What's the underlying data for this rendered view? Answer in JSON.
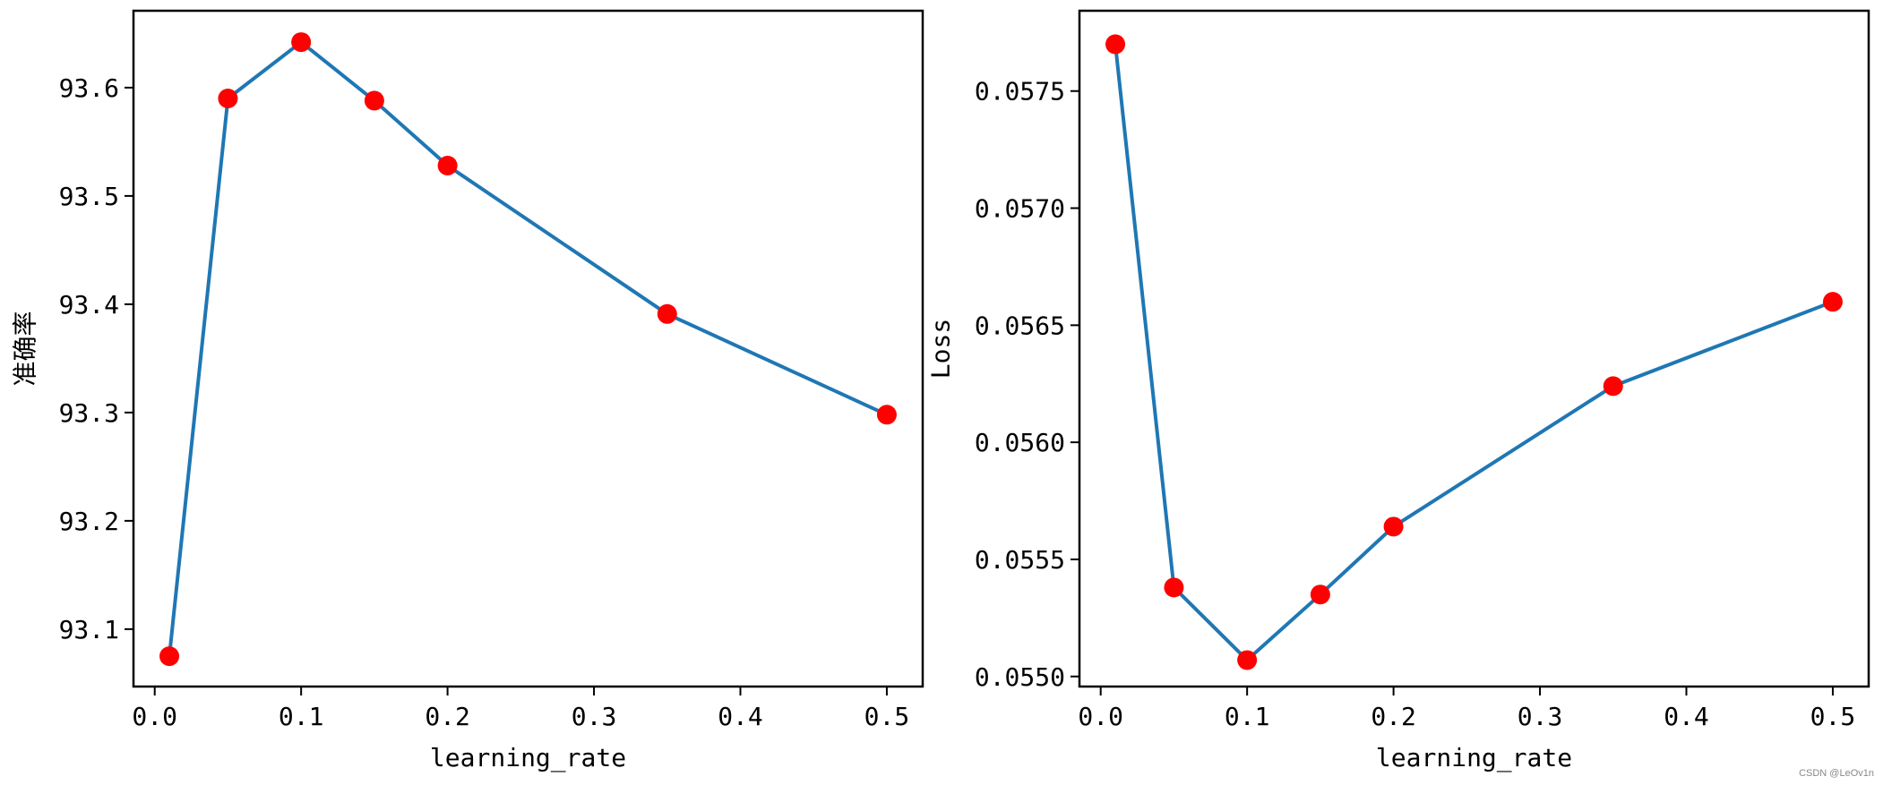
{
  "colors": {
    "line": "#1f77b4",
    "marker": "#ff0000",
    "axis": "#000000"
  },
  "watermark": "CSDN @LeOv1n",
  "chart_data": [
    {
      "type": "line",
      "xlabel": "learning_rate",
      "ylabel": "准确率",
      "x": [
        0.01,
        0.05,
        0.1,
        0.15,
        0.2,
        0.35,
        0.5
      ],
      "series": [
        {
          "values": [
            93.075,
            93.59,
            93.642,
            93.588,
            93.528,
            93.391,
            93.298
          ]
        }
      ],
      "xlim": [
        -0.0145,
        0.5245
      ],
      "ylim": [
        93.047,
        93.671
      ],
      "xticks": [
        0.0,
        0.1,
        0.2,
        0.3,
        0.4,
        0.5
      ],
      "xtick_labels": [
        "0.0",
        "0.1",
        "0.2",
        "0.3",
        "0.4",
        "0.5"
      ],
      "yticks": [
        93.1,
        93.2,
        93.3,
        93.4,
        93.5,
        93.6
      ],
      "ytick_labels": [
        "93.1",
        "93.2",
        "93.3",
        "93.4",
        "93.5",
        "93.6"
      ],
      "grid": false
    },
    {
      "type": "line",
      "xlabel": "learning_rate",
      "ylabel": "Loss",
      "x": [
        0.01,
        0.05,
        0.1,
        0.15,
        0.2,
        0.35,
        0.5
      ],
      "series": [
        {
          "values": [
            0.0577,
            0.05538,
            0.05507,
            0.05535,
            0.05564,
            0.05624,
            0.0566
          ]
        }
      ],
      "xlim": [
        -0.0145,
        0.5245
      ],
      "ylim": [
        0.054957,
        0.057843
      ],
      "xticks": [
        0.0,
        0.1,
        0.2,
        0.3,
        0.4,
        0.5
      ],
      "xtick_labels": [
        "0.0",
        "0.1",
        "0.2",
        "0.3",
        "0.4",
        "0.5"
      ],
      "yticks": [
        0.055,
        0.0555,
        0.056,
        0.0565,
        0.057,
        0.0575
      ],
      "ytick_labels": [
        "0.0550",
        "0.0555",
        "0.0560",
        "0.0565",
        "0.0570",
        "0.0575"
      ],
      "grid": false
    }
  ]
}
